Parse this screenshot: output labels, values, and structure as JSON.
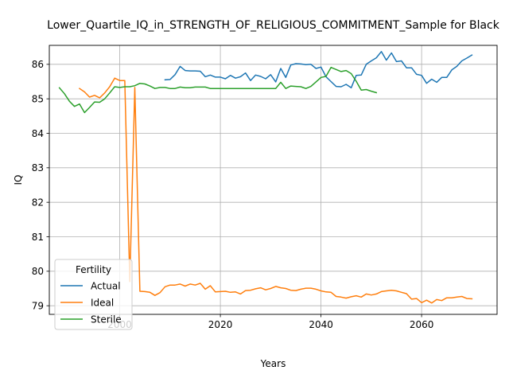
{
  "chart_data": {
    "type": "line",
    "title": "Lower_Quartile_IQ_in_STRENGTH_OF_RELIGIOUS_COMMITMENT_Sample for Black",
    "xlabel": "Years",
    "ylabel": "IQ",
    "xlim": [
      1986,
      2075
    ],
    "ylim": [
      78.75,
      86.55
    ],
    "x_ticks": [
      2000,
      2020,
      2040,
      2060
    ],
    "y_ticks": [
      79,
      80,
      81,
      82,
      83,
      84,
      85,
      86
    ],
    "grid": true,
    "legend": {
      "title": "Fertility",
      "placement": "lower-left"
    },
    "series": [
      {
        "name": "Actual",
        "color": "#1f77b4",
        "x": [
          2009,
          2010,
          2011,
          2012,
          2013,
          2014,
          2015,
          2016,
          2017,
          2018,
          2019,
          2020,
          2021,
          2022,
          2023,
          2024,
          2025,
          2026,
          2027,
          2028,
          2029,
          2030,
          2031,
          2032,
          2033,
          2034,
          2035,
          2036,
          2037,
          2038,
          2039,
          2040,
          2041,
          2042,
          2043,
          2044,
          2045,
          2046,
          2047,
          2048,
          2049,
          2050,
          2051,
          2052,
          2053,
          2054,
          2055,
          2056,
          2057,
          2058,
          2059,
          2060,
          2061,
          2062,
          2063,
          2064,
          2065,
          2066,
          2067,
          2068,
          2069,
          2070
        ],
        "y": [
          85.55,
          85.56,
          85.7,
          85.94,
          85.82,
          85.81,
          85.81,
          85.8,
          85.64,
          85.69,
          85.63,
          85.63,
          85.58,
          85.68,
          85.6,
          85.64,
          85.75,
          85.53,
          85.69,
          85.65,
          85.58,
          85.7,
          85.49,
          85.88,
          85.62,
          85.98,
          86.02,
          86.01,
          85.99,
          86.0,
          85.88,
          85.92,
          85.64,
          85.5,
          85.36,
          85.35,
          85.42,
          85.32,
          85.68,
          85.69,
          86.0,
          86.1,
          86.19,
          86.37,
          86.12,
          86.33,
          86.08,
          86.1,
          85.9,
          85.9,
          85.71,
          85.68,
          85.45,
          85.57,
          85.48,
          85.62,
          85.62,
          85.84,
          85.94,
          86.1,
          86.18,
          86.27
        ]
      },
      {
        "name": "Ideal",
        "color": "#ff7f0e",
        "x": [
          1992,
          1993,
          1994,
          1995,
          1996,
          1997,
          1998,
          1999,
          2000,
          2001,
          2002,
          2003,
          2004,
          2005,
          2006,
          2007,
          2008,
          2009,
          2010,
          2011,
          2012,
          2013,
          2014,
          2015,
          2016,
          2017,
          2018,
          2019,
          2020,
          2021,
          2022,
          2023,
          2024,
          2025,
          2026,
          2027,
          2028,
          2029,
          2030,
          2031,
          2032,
          2033,
          2034,
          2035,
          2036,
          2037,
          2038,
          2039,
          2040,
          2041,
          2042,
          2043,
          2044,
          2045,
          2046,
          2047,
          2048,
          2049,
          2050,
          2051,
          2052,
          2053,
          2054,
          2055,
          2056,
          2057,
          2058,
          2059,
          2060,
          2061,
          2062,
          2063,
          2064,
          2065,
          2066,
          2067,
          2068,
          2069,
          2070
        ],
        "y": [
          85.3,
          85.2,
          85.05,
          85.1,
          85.03,
          85.17,
          85.35,
          85.6,
          85.53,
          85.53,
          79.7,
          85.33,
          79.42,
          79.41,
          79.39,
          79.3,
          79.38,
          79.55,
          79.6,
          79.6,
          79.63,
          79.57,
          79.63,
          79.6,
          79.65,
          79.48,
          79.58,
          79.4,
          79.41,
          79.42,
          79.39,
          79.4,
          79.34,
          79.44,
          79.45,
          79.49,
          79.52,
          79.46,
          79.5,
          79.56,
          79.52,
          79.5,
          79.45,
          79.44,
          79.48,
          79.51,
          79.51,
          79.48,
          79.43,
          79.4,
          79.39,
          79.27,
          79.25,
          79.22,
          79.26,
          79.29,
          79.25,
          79.34,
          79.31,
          79.34,
          79.41,
          79.43,
          79.45,
          79.43,
          79.39,
          79.35,
          79.19,
          79.21,
          79.09,
          79.16,
          79.08,
          79.18,
          79.15,
          79.23,
          79.23,
          79.25,
          79.27,
          79.21,
          79.2
        ]
      },
      {
        "name": "Sterile",
        "color": "#2ca02c",
        "x": [
          1988,
          1989,
          1990,
          1991,
          1992,
          1993,
          1994,
          1995,
          1996,
          1997,
          1998,
          1999,
          2000,
          2001,
          2002,
          2003,
          2004,
          2005,
          2006,
          2007,
          2008,
          2009,
          2010,
          2011,
          2012,
          2013,
          2014,
          2015,
          2016,
          2017,
          2018,
          2019,
          2020,
          2021,
          2022,
          2023,
          2024,
          2025,
          2026,
          2027,
          2028,
          2029,
          2030,
          2031,
          2032,
          2033,
          2034,
          2035,
          2036,
          2037,
          2038,
          2039,
          2040,
          2041,
          2042,
          2043,
          2044,
          2045,
          2046,
          2047,
          2048,
          2049,
          2050,
          2051
        ],
        "y": [
          85.32,
          85.15,
          84.93,
          84.78,
          84.85,
          84.6,
          84.75,
          84.91,
          84.9,
          85.0,
          85.17,
          85.35,
          85.33,
          85.35,
          85.35,
          85.38,
          85.45,
          85.43,
          85.37,
          85.3,
          85.33,
          85.33,
          85.3,
          85.3,
          85.34,
          85.32,
          85.32,
          85.34,
          85.34,
          85.34,
          85.3,
          85.3,
          85.3,
          85.3,
          85.3,
          85.3,
          85.3,
          85.3,
          85.3,
          85.3,
          85.3,
          85.3,
          85.3,
          85.3,
          85.48,
          85.3,
          85.37,
          85.36,
          85.35,
          85.3,
          85.36,
          85.49,
          85.62,
          85.65,
          85.91,
          85.85,
          85.79,
          85.82,
          85.73,
          85.51,
          85.25,
          85.27,
          85.22,
          85.18
        ]
      }
    ]
  }
}
